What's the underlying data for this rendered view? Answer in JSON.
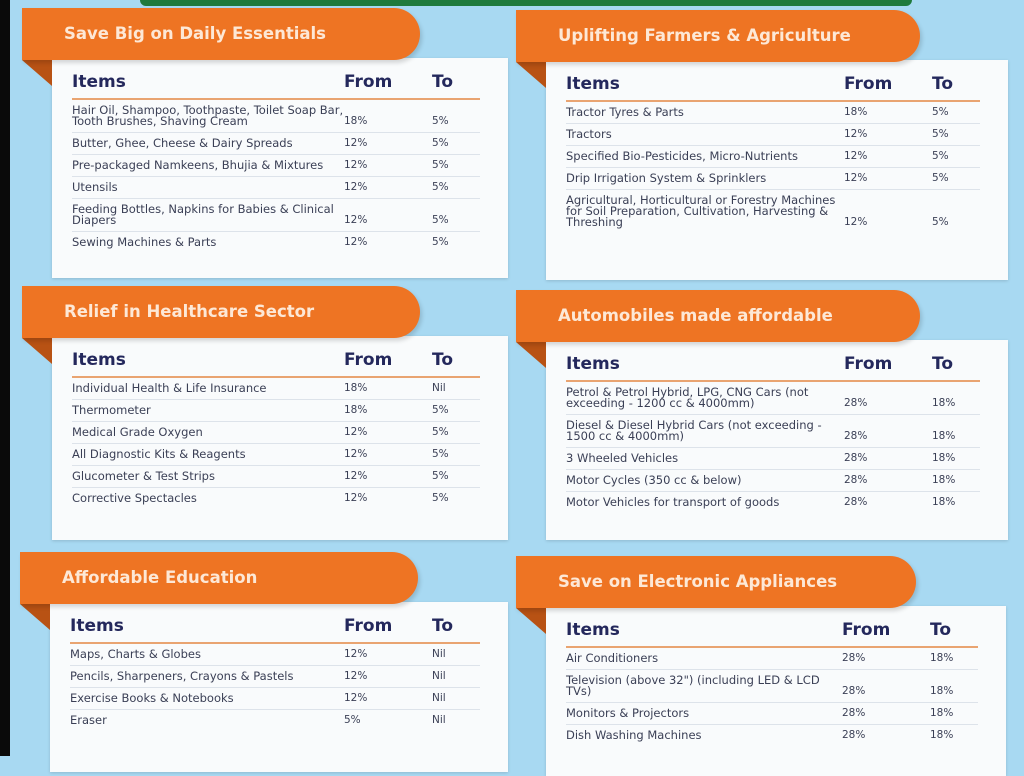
{
  "colors": {
    "background": "#a8d9f2",
    "header_orange": "#ee7423",
    "heading_navy": "#24285c",
    "divider": "#e9a471"
  },
  "panels": [
    {
      "title": "Save Big on Daily Essentials",
      "headers": [
        "Items",
        "From",
        "To"
      ],
      "rows": [
        [
          "Hair Oil, Shampoo, Toothpaste, Toilet Soap Bar, Tooth Brushes, Shaving Cream",
          "18%",
          "5%"
        ],
        [
          "Butter, Ghee, Cheese & Dairy Spreads",
          "12%",
          "5%"
        ],
        [
          "Pre-packaged Namkeens, Bhujia & Mixtures",
          "12%",
          "5%"
        ],
        [
          "Utensils",
          "12%",
          "5%"
        ],
        [
          "Feeding Bottles, Napkins for Babies & Clinical Diapers",
          "12%",
          "5%"
        ],
        [
          "Sewing Machines & Parts",
          "12%",
          "5%"
        ]
      ]
    },
    {
      "title": "Uplifting Farmers & Agriculture",
      "headers": [
        "Items",
        "From",
        "To"
      ],
      "rows": [
        [
          "Tractor Tyres & Parts",
          "18%",
          "5%"
        ],
        [
          "Tractors",
          "12%",
          "5%"
        ],
        [
          "Specified Bio-Pesticides, Micro-Nutrients",
          "12%",
          "5%"
        ],
        [
          "Drip Irrigation System & Sprinklers",
          "12%",
          "5%"
        ],
        [
          "Agricultural, Horticultural or Forestry Machines for Soil Preparation, Cultivation, Harvesting & Threshing",
          "12%",
          "5%"
        ]
      ]
    },
    {
      "title": "Relief in Healthcare Sector",
      "headers": [
        "Items",
        "From",
        "To"
      ],
      "rows": [
        [
          "Individual Health & Life Insurance",
          "18%",
          "Nil"
        ],
        [
          "Thermometer",
          "18%",
          "5%"
        ],
        [
          "Medical Grade Oxygen",
          "12%",
          "5%"
        ],
        [
          "All Diagnostic Kits & Reagents",
          "12%",
          "5%"
        ],
        [
          "Glucometer & Test Strips",
          "12%",
          "5%"
        ],
        [
          "Corrective Spectacles",
          "12%",
          "5%"
        ]
      ]
    },
    {
      "title": "Automobiles made affordable",
      "headers": [
        "Items",
        "From",
        "To"
      ],
      "rows": [
        [
          "Petrol & Petrol Hybrid, LPG, CNG Cars (not exceeding - 1200 cc & 4000mm)",
          "28%",
          "18%"
        ],
        [
          "Diesel & Diesel Hybrid Cars (not exceeding - 1500 cc & 4000mm)",
          "28%",
          "18%"
        ],
        [
          "3 Wheeled Vehicles",
          "28%",
          "18%"
        ],
        [
          "Motor Cycles (350 cc & below)",
          "28%",
          "18%"
        ],
        [
          "Motor Vehicles for transport of goods",
          "28%",
          "18%"
        ]
      ]
    },
    {
      "title": "Affordable Education",
      "headers": [
        "Items",
        "From",
        "To"
      ],
      "rows": [
        [
          "Maps, Charts & Globes",
          "12%",
          "Nil"
        ],
        [
          "Pencils, Sharpeners, Crayons & Pastels",
          "12%",
          "Nil"
        ],
        [
          "Exercise Books & Notebooks",
          "12%",
          "Nil"
        ],
        [
          "Eraser",
          "5%",
          "Nil"
        ]
      ]
    },
    {
      "title": "Save on Electronic Appliances",
      "headers": [
        "Items",
        "From",
        "To"
      ],
      "rows": [
        [
          "Air Conditioners",
          "28%",
          "18%"
        ],
        [
          "Television (above 32\") (including LED & LCD TVs)",
          "28%",
          "18%"
        ],
        [
          "Monitors & Projectors",
          "28%",
          "18%"
        ],
        [
          "Dish Washing Machines",
          "28%",
          "18%"
        ]
      ]
    }
  ]
}
